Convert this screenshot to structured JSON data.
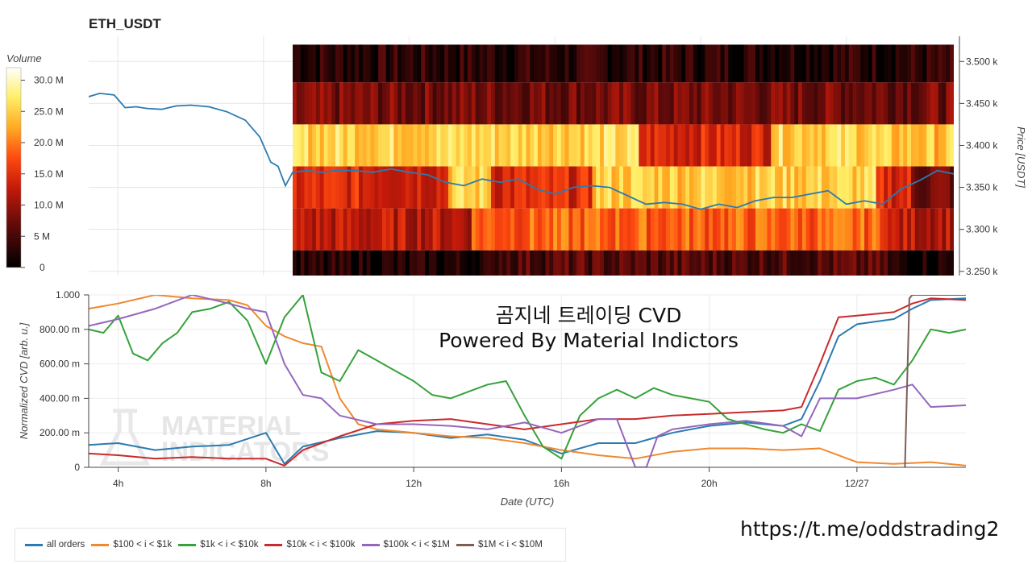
{
  "top_chart": {
    "title": "ETH_USDT",
    "colorbar_title": "Volume",
    "colorbar_ticks": [
      {
        "label": "30.0 M",
        "value": 30
      },
      {
        "label": "25.0 M",
        "value": 25
      },
      {
        "label": "20.0 M",
        "value": 20
      },
      {
        "label": "15.0 M",
        "value": 15
      },
      {
        "label": "10.0 M",
        "value": 10
      },
      {
        "label": "5 M",
        "value": 5
      },
      {
        "label": "0",
        "value": 0
      }
    ],
    "y_axis_label": "Price [USDT]",
    "y_ticks": [
      {
        "label": "3.500 k",
        "value": 3500
      },
      {
        "label": "3.450 k",
        "value": 3450
      },
      {
        "label": "3.400 k",
        "value": 3400
      },
      {
        "label": "3.350 k",
        "value": 3350
      },
      {
        "label": "3.300 k",
        "value": 3300
      },
      {
        "label": "3.250 k",
        "value": 3250
      }
    ]
  },
  "bottom_chart": {
    "y_axis_label": "Normalized CVD [arb. u.]",
    "x_axis_label": "Date (UTC)",
    "y_ticks": [
      {
        "label": "1.000",
        "value": 1.0
      },
      {
        "label": "800.00 m",
        "value": 0.8
      },
      {
        "label": "600.00 m",
        "value": 0.6
      },
      {
        "label": "400.00 m",
        "value": 0.4
      },
      {
        "label": "200.00 m",
        "value": 0.2
      },
      {
        "label": "0",
        "value": 0
      }
    ],
    "x_ticks": [
      {
        "label": "4h",
        "value": 4
      },
      {
        "label": "8h",
        "value": 8
      },
      {
        "label": "12h",
        "value": 12
      },
      {
        "label": "16h",
        "value": 16
      },
      {
        "label": "20h",
        "value": 20
      },
      {
        "label": "12/27",
        "value": 24
      }
    ],
    "overlay_line1": "곰지네 트레이딩 CVD",
    "overlay_line2": "Powered By Material Indictors",
    "watermark_line1": "MATERIAL",
    "watermark_line2": "INDICATORS"
  },
  "url_text": "https://t.me/oddstrading2",
  "legend": [
    {
      "label": "all orders",
      "color": "#2b7bb0"
    },
    {
      "label": "$100 < i < $1k",
      "color": "#f0882e"
    },
    {
      "label": "$1k < i < $10k",
      "color": "#35a23a"
    },
    {
      "label": "$10k < i < $100k",
      "color": "#c92a2c"
    },
    {
      "label": "$100k < i < $1M",
      "color": "#9467bd"
    },
    {
      "label": "$1M < i < $10M",
      "color": "#7d5e57"
    }
  ],
  "chart_data": [
    {
      "type": "heatmap",
      "title": "ETH_USDT",
      "x_range_hours": [
        3.2,
        26.95
      ],
      "heatmap_start_hour": 8.8,
      "ylabel": "Price [USDT]",
      "ylim": [
        3245,
        3530
      ],
      "price_bands": [
        {
          "from": 3475,
          "to": 3520,
          "level": 0.1
        },
        {
          "from": 3425,
          "to": 3475,
          "level": 0.25
        },
        {
          "from": 3375,
          "to": 3425,
          "level": 0.8
        },
        {
          "from": 3325,
          "to": 3375,
          "level": 0.6
        },
        {
          "from": 3275,
          "to": 3325,
          "level": 0.4
        },
        {
          "from": 3245,
          "to": 3275,
          "level": 0.12
        }
      ],
      "price_series": {
        "name": "Price",
        "color": "#2b7bb0",
        "x": [
          3.2,
          3.5,
          3.9,
          4.2,
          4.5,
          4.8,
          5.2,
          5.6,
          6.0,
          6.5,
          7.0,
          7.5,
          7.9,
          8.2,
          8.4,
          8.6,
          8.8,
          9.2,
          9.6,
          10.0,
          10.5,
          11.0,
          11.5,
          12.0,
          12.5,
          13.0,
          13.5,
          14.0,
          14.5,
          15.0,
          15.5,
          16.0,
          16.5,
          17.0,
          17.5,
          18.0,
          18.5,
          19.0,
          19.5,
          20.0,
          20.5,
          21.0,
          21.5,
          22.0,
          22.5,
          23.0,
          23.5,
          24.0,
          24.5,
          25.0,
          25.5,
          26.0,
          26.5,
          26.95
        ],
        "y": [
          3458,
          3462,
          3460,
          3445,
          3446,
          3444,
          3443,
          3447,
          3448,
          3446,
          3440,
          3430,
          3410,
          3380,
          3375,
          3352,
          3368,
          3370,
          3368,
          3370,
          3370,
          3368,
          3372,
          3368,
          3365,
          3356,
          3352,
          3360,
          3356,
          3360,
          3348,
          3342,
          3350,
          3352,
          3350,
          3340,
          3330,
          3332,
          3330,
          3324,
          3330,
          3326,
          3334,
          3338,
          3338,
          3342,
          3346,
          3330,
          3334,
          3330,
          3348,
          3358,
          3370,
          3366
        ]
      }
    },
    {
      "type": "line",
      "xlabel": "Date (UTC)",
      "ylabel": "Normalized CVD [arb. u.]",
      "xlim": [
        3.2,
        26.95
      ],
      "ylim": [
        0,
        1
      ],
      "series": [
        {
          "name": "all orders",
          "color": "#2b7bb0",
          "x": [
            3.2,
            4.0,
            5.0,
            6.0,
            7.0,
            8.0,
            8.5,
            9.0,
            10.0,
            11.0,
            12.0,
            13.0,
            14.0,
            15.0,
            16.0,
            17.0,
            18.0,
            19.0,
            20.0,
            21.0,
            22.0,
            22.5,
            23.0,
            23.5,
            24.0,
            25.0,
            25.5,
            26.0,
            26.95
          ],
          "y": [
            0.13,
            0.14,
            0.1,
            0.12,
            0.13,
            0.2,
            0.02,
            0.12,
            0.17,
            0.21,
            0.2,
            0.17,
            0.19,
            0.16,
            0.08,
            0.14,
            0.14,
            0.2,
            0.24,
            0.26,
            0.24,
            0.28,
            0.5,
            0.76,
            0.83,
            0.86,
            0.92,
            0.97,
            0.98
          ]
        },
        {
          "name": "$100 < i < $1k",
          "color": "#f0882e",
          "x": [
            3.2,
            4.0,
            5.0,
            6.0,
            7.0,
            7.5,
            8.0,
            8.5,
            9.0,
            9.5,
            10.0,
            10.5,
            11.0,
            12.0,
            13.0,
            14.0,
            15.0,
            16.0,
            17.0,
            18.0,
            19.0,
            20.0,
            21.0,
            22.0,
            23.0,
            24.0,
            25.0,
            26.0,
            26.95
          ],
          "y": [
            0.92,
            0.95,
            1.0,
            0.98,
            0.97,
            0.94,
            0.82,
            0.76,
            0.72,
            0.7,
            0.4,
            0.25,
            0.22,
            0.2,
            0.18,
            0.17,
            0.14,
            0.1,
            0.07,
            0.05,
            0.09,
            0.11,
            0.11,
            0.1,
            0.11,
            0.03,
            0.02,
            0.03,
            0.01
          ]
        },
        {
          "name": "$1k < i < $10k",
          "color": "#35a23a",
          "x": [
            3.2,
            3.6,
            4.0,
            4.4,
            4.8,
            5.2,
            5.6,
            6.0,
            6.5,
            7.0,
            7.5,
            8.0,
            8.5,
            9.0,
            9.5,
            10.0,
            10.5,
            11.0,
            11.5,
            12.0,
            12.5,
            13.0,
            13.5,
            14.0,
            14.5,
            15.0,
            15.5,
            16.0,
            16.5,
            17.0,
            17.5,
            18.0,
            18.5,
            19.0,
            19.5,
            20.0,
            20.5,
            21.0,
            21.5,
            22.0,
            22.5,
            23.0,
            23.5,
            24.0,
            24.5,
            25.0,
            25.5,
            26.0,
            26.5,
            26.95
          ],
          "y": [
            0.8,
            0.78,
            0.88,
            0.66,
            0.62,
            0.72,
            0.78,
            0.9,
            0.92,
            0.96,
            0.85,
            0.6,
            0.87,
            1.0,
            0.55,
            0.5,
            0.68,
            0.62,
            0.56,
            0.5,
            0.42,
            0.4,
            0.44,
            0.48,
            0.5,
            0.3,
            0.12,
            0.05,
            0.3,
            0.4,
            0.45,
            0.4,
            0.46,
            0.42,
            0.4,
            0.38,
            0.28,
            0.25,
            0.22,
            0.2,
            0.25,
            0.21,
            0.45,
            0.5,
            0.52,
            0.48,
            0.62,
            0.8,
            0.78,
            0.8
          ]
        },
        {
          "name": "$10k < i < $100k",
          "color": "#c92a2c",
          "x": [
            3.2,
            4.0,
            5.0,
            6.0,
            7.0,
            8.0,
            8.5,
            9.0,
            10.0,
            11.0,
            12.0,
            13.0,
            14.0,
            15.0,
            16.0,
            17.0,
            18.0,
            19.0,
            20.0,
            21.0,
            22.0,
            22.5,
            23.0,
            23.5,
            24.0,
            25.0,
            25.5,
            26.0,
            26.95
          ],
          "y": [
            0.08,
            0.07,
            0.05,
            0.06,
            0.05,
            0.05,
            0.01,
            0.1,
            0.18,
            0.25,
            0.27,
            0.28,
            0.25,
            0.22,
            0.25,
            0.28,
            0.28,
            0.3,
            0.31,
            0.32,
            0.33,
            0.35,
            0.6,
            0.87,
            0.88,
            0.9,
            0.95,
            0.98,
            0.97
          ]
        },
        {
          "name": "$100k < i < $1M",
          "color": "#9467bd",
          "x": [
            3.2,
            4.0,
            5.0,
            6.0,
            7.0,
            7.5,
            8.0,
            8.5,
            9.0,
            9.5,
            10.0,
            11.0,
            12.0,
            13.0,
            14.0,
            15.0,
            16.0,
            17.0,
            17.5,
            18.0,
            18.3,
            18.6,
            19.0,
            20.0,
            21.0,
            22.0,
            22.5,
            23.0,
            24.0,
            25.0,
            25.5,
            26.0,
            26.95
          ],
          "y": [
            0.82,
            0.86,
            0.92,
            1.0,
            0.95,
            0.92,
            0.9,
            0.6,
            0.42,
            0.4,
            0.3,
            0.25,
            0.25,
            0.24,
            0.22,
            0.26,
            0.2,
            0.28,
            0.28,
            0.0,
            0.0,
            0.18,
            0.22,
            0.25,
            0.27,
            0.24,
            0.18,
            0.4,
            0.4,
            0.45,
            0.48,
            0.35,
            0.36
          ]
        },
        {
          "name": "$1M < i < $10M",
          "color": "#7d5e57",
          "x": [
            25.3,
            25.42,
            25.5,
            26.0,
            26.95
          ],
          "y": [
            0.0,
            0.98,
            1.0,
            1.0,
            1.0
          ]
        }
      ]
    }
  ]
}
